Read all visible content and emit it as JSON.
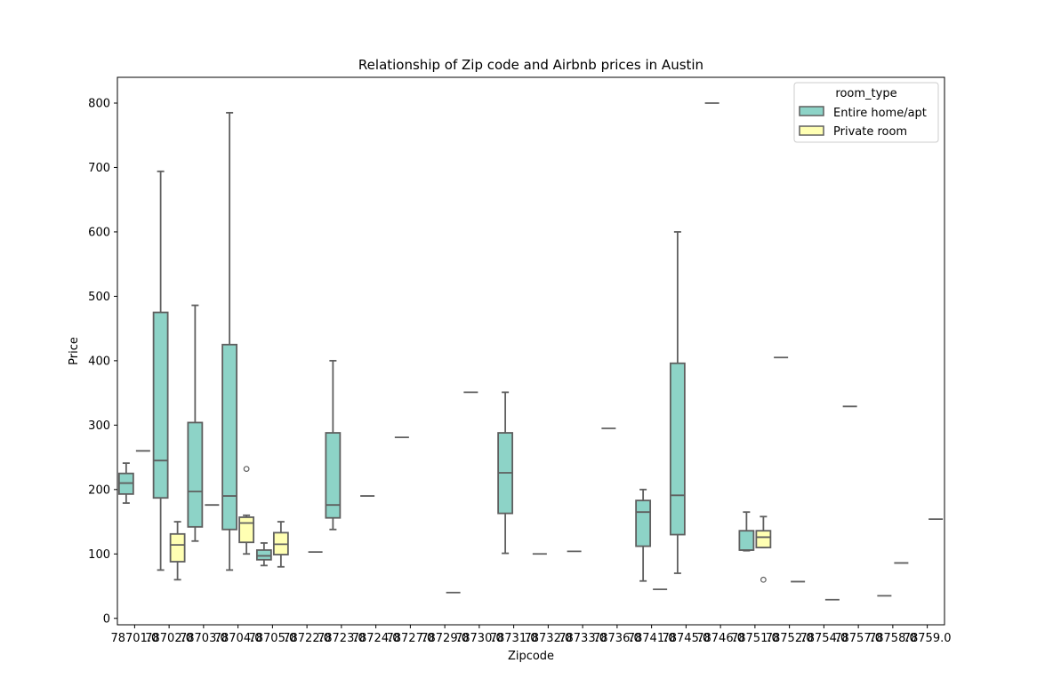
{
  "chart_data": {
    "type": "box",
    "title": "Relationship of Zip code and Airbnb prices in Austin",
    "xlabel": "Zipcode",
    "ylabel": "Price",
    "ylim": [
      -10,
      840
    ],
    "yticks": [
      0,
      100,
      200,
      300,
      400,
      500,
      600,
      700,
      800
    ],
    "categories": [
      "78701.0",
      "78702.0",
      "78703.0",
      "78704.0",
      "78705.0",
      "78722.0",
      "78723.0",
      "78724.0",
      "78727.0",
      "78729.0",
      "78730.0",
      "78731.0",
      "78732.0",
      "78733.0",
      "78736.0",
      "78741.0",
      "78745.0",
      "78746.0",
      "78751.0",
      "78752.0",
      "78754.0",
      "78757.0",
      "78758.0",
      "78759.0"
    ],
    "legend": {
      "title": "room_type",
      "placement": "upper right",
      "entries": [
        "Entire home/apt",
        "Private room"
      ]
    },
    "colors": {
      "Entire home/apt": "#8dd3c7",
      "Private room": "#ffffb3",
      "line": "#5f5f5f"
    },
    "boxes": [
      {
        "cat": 0,
        "series": "Entire home/apt",
        "whislo": 179,
        "q1": 193,
        "med": 210,
        "q3": 225,
        "whishi": 241,
        "fliers": []
      },
      {
        "cat": 0,
        "series": "Private room",
        "whislo": 260,
        "q1": 260,
        "med": 260,
        "q3": 260,
        "whishi": 260,
        "fliers": []
      },
      {
        "cat": 1,
        "series": "Entire home/apt",
        "whislo": 75,
        "q1": 187,
        "med": 245,
        "q3": 475,
        "whishi": 694,
        "fliers": []
      },
      {
        "cat": 1,
        "series": "Private room",
        "whislo": 60,
        "q1": 88,
        "med": 114,
        "q3": 131,
        "whishi": 150,
        "fliers": []
      },
      {
        "cat": 2,
        "series": "Entire home/apt",
        "whislo": 120,
        "q1": 142,
        "med": 197,
        "q3": 304,
        "whishi": 486,
        "fliers": []
      },
      {
        "cat": 2,
        "series": "Private room",
        "whislo": 176,
        "q1": 176,
        "med": 176,
        "q3": 176,
        "whishi": 176,
        "fliers": []
      },
      {
        "cat": 3,
        "series": "Entire home/apt",
        "whislo": 75,
        "q1": 138,
        "med": 190,
        "q3": 425,
        "whishi": 785,
        "fliers": []
      },
      {
        "cat": 3,
        "series": "Private room",
        "whislo": 100,
        "q1": 118,
        "med": 148,
        "q3": 157,
        "whishi": 160,
        "fliers": [
          232
        ]
      },
      {
        "cat": 4,
        "series": "Entire home/apt",
        "whislo": 82,
        "q1": 91,
        "med": 97,
        "q3": 106,
        "whishi": 117,
        "fliers": []
      },
      {
        "cat": 4,
        "series": "Private room",
        "whislo": 80,
        "q1": 99,
        "med": 115,
        "q3": 133,
        "whishi": 150,
        "fliers": []
      },
      {
        "cat": 5,
        "series": "Private room",
        "whislo": 103,
        "q1": 103,
        "med": 103,
        "q3": 103,
        "whishi": 103,
        "fliers": []
      },
      {
        "cat": 6,
        "series": "Entire home/apt",
        "whislo": 138,
        "q1": 156,
        "med": 176,
        "q3": 288,
        "whishi": 400,
        "fliers": []
      },
      {
        "cat": 7,
        "series": "Entire home/apt",
        "whislo": 190,
        "q1": 190,
        "med": 190,
        "q3": 190,
        "whishi": 190,
        "fliers": []
      },
      {
        "cat": 8,
        "series": "Entire home/apt",
        "whislo": 281,
        "q1": 281,
        "med": 281,
        "q3": 281,
        "whishi": 281,
        "fliers": []
      },
      {
        "cat": 9,
        "series": "Private room",
        "whislo": 40,
        "q1": 40,
        "med": 40,
        "q3": 40,
        "whishi": 40,
        "fliers": []
      },
      {
        "cat": 10,
        "series": "Entire home/apt",
        "whislo": 351,
        "q1": 351,
        "med": 351,
        "q3": 351,
        "whishi": 351,
        "fliers": []
      },
      {
        "cat": 11,
        "series": "Entire home/apt",
        "whislo": 101,
        "q1": 163,
        "med": 226,
        "q3": 288,
        "whishi": 351,
        "fliers": []
      },
      {
        "cat": 12,
        "series": "Entire home/apt",
        "whislo": 100,
        "q1": 100,
        "med": 100,
        "q3": 100,
        "whishi": 100,
        "fliers": []
      },
      {
        "cat": 13,
        "series": "Entire home/apt",
        "whislo": 104,
        "q1": 104,
        "med": 104,
        "q3": 104,
        "whishi": 104,
        "fliers": []
      },
      {
        "cat": 14,
        "series": "Entire home/apt",
        "whislo": 295,
        "q1": 295,
        "med": 295,
        "q3": 295,
        "whishi": 295,
        "fliers": []
      },
      {
        "cat": 15,
        "series": "Entire home/apt",
        "whislo": 58,
        "q1": 112,
        "med": 165,
        "q3": 183,
        "whishi": 200,
        "fliers": []
      },
      {
        "cat": 15,
        "series": "Private room",
        "whislo": 45,
        "q1": 45,
        "med": 45,
        "q3": 45,
        "whishi": 45,
        "fliers": []
      },
      {
        "cat": 16,
        "series": "Entire home/apt",
        "whislo": 70,
        "q1": 130,
        "med": 191,
        "q3": 396,
        "whishi": 600,
        "fliers": []
      },
      {
        "cat": 17,
        "series": "Entire home/apt",
        "whislo": 800,
        "q1": 800,
        "med": 800,
        "q3": 800,
        "whishi": 800,
        "fliers": []
      },
      {
        "cat": 18,
        "series": "Entire home/apt",
        "whislo": 105,
        "q1": 106,
        "med": 106,
        "q3": 136,
        "whishi": 165,
        "fliers": []
      },
      {
        "cat": 18,
        "series": "Private room",
        "whislo": 110,
        "q1": 110,
        "med": 126,
        "q3": 136,
        "whishi": 158,
        "fliers": [
          60
        ]
      },
      {
        "cat": 19,
        "series": "Entire home/apt",
        "whislo": 405,
        "q1": 405,
        "med": 405,
        "q3": 405,
        "whishi": 405,
        "fliers": []
      },
      {
        "cat": 19,
        "series": "Private room",
        "whislo": 57,
        "q1": 57,
        "med": 57,
        "q3": 57,
        "whishi": 57,
        "fliers": []
      },
      {
        "cat": 20,
        "series": "Private room",
        "whislo": 29,
        "q1": 29,
        "med": 29,
        "q3": 29,
        "whishi": 29,
        "fliers": []
      },
      {
        "cat": 21,
        "series": "Entire home/apt",
        "whislo": 329,
        "q1": 329,
        "med": 329,
        "q3": 329,
        "whishi": 329,
        "fliers": []
      },
      {
        "cat": 22,
        "series": "Entire home/apt",
        "whislo": 35,
        "q1": 35,
        "med": 35,
        "q3": 35,
        "whishi": 35,
        "fliers": []
      },
      {
        "cat": 22,
        "series": "Private room",
        "whislo": 86,
        "q1": 86,
        "med": 86,
        "q3": 86,
        "whishi": 86,
        "fliers": []
      },
      {
        "cat": 23,
        "series": "Private room",
        "whislo": 154,
        "q1": 154,
        "med": 154,
        "q3": 154,
        "whishi": 154,
        "fliers": []
      }
    ]
  }
}
